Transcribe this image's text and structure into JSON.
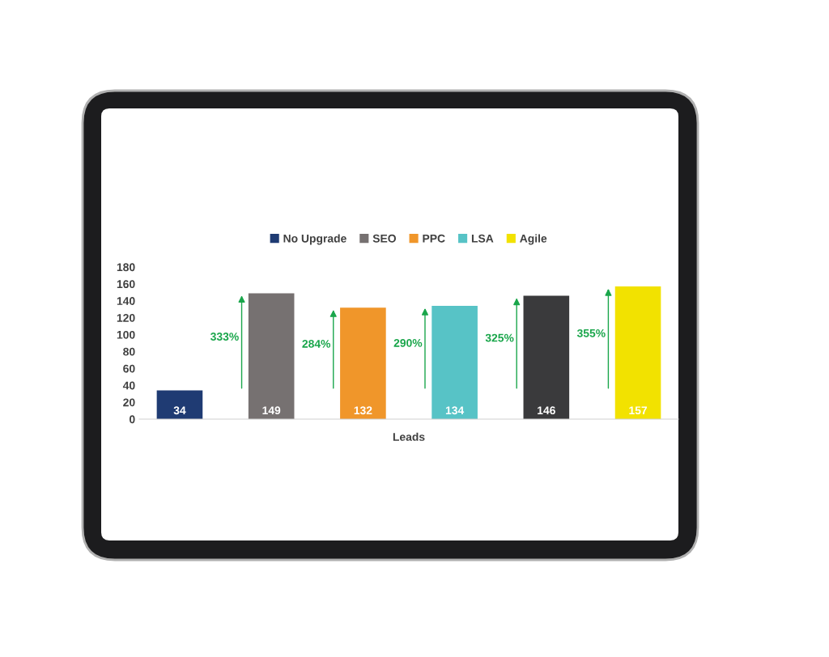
{
  "chart_data": {
    "type": "bar",
    "categories": [
      "Leads"
    ],
    "series": [
      {
        "name": "No Upgrade",
        "color": "#1f3b73",
        "values": [
          34
        ]
      },
      {
        "name": "SEO",
        "color": "#767171",
        "values": [
          149
        ]
      },
      {
        "name": "PPC",
        "color": "#f0962a",
        "values": [
          132
        ]
      },
      {
        "name": "LSA",
        "color": "#57c3c6",
        "values": [
          134
        ]
      },
      {
        "color": "#3a3a3c",
        "values": [
          146
        ]
      },
      {
        "name": "Agile",
        "color": "#f2e200",
        "values": [
          157
        ]
      }
    ],
    "ylim": [
      0,
      180
    ],
    "yticks": [
      0,
      20,
      40,
      60,
      80,
      100,
      120,
      140,
      160,
      180
    ],
    "data_labels": true,
    "legend": "top",
    "grid": false,
    "annotations": [
      "333%",
      "284%",
      "290%",
      "325%",
      "355%"
    ]
  }
}
